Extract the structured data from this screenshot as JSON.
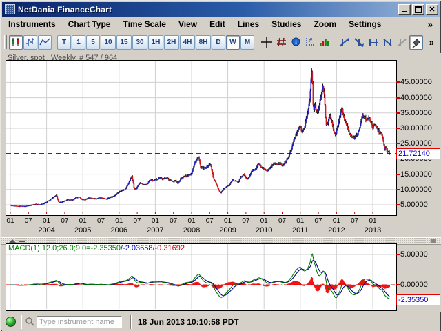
{
  "window": {
    "title": "NetDania FinanceChart"
  },
  "menu": {
    "items": [
      "Instruments",
      "Chart Type",
      "Time Scale",
      "View",
      "Edit",
      "Lines",
      "Studies",
      "Zoom",
      "Settings"
    ],
    "overflow": "»"
  },
  "toolbar": {
    "time_buttons": [
      {
        "label": "T",
        "pressed": false
      },
      {
        "label": "1",
        "pressed": false
      },
      {
        "label": "5",
        "pressed": false
      },
      {
        "label": "10",
        "pressed": false
      },
      {
        "label": "15",
        "pressed": false
      },
      {
        "label": "30",
        "pressed": false
      },
      {
        "label": "1H",
        "pressed": false
      },
      {
        "label": "2H",
        "pressed": false
      },
      {
        "label": "4H",
        "pressed": false
      },
      {
        "label": "8H",
        "pressed": false
      },
      {
        "label": "D",
        "pressed": false
      },
      {
        "label": "W",
        "pressed": true
      },
      {
        "label": "M",
        "pressed": false
      }
    ],
    "overflow": "»"
  },
  "chart_data": [
    {
      "type": "candlestick",
      "title": "Silver, spot , Weekly, # 547 / 964",
      "instrument": "Silver, spot",
      "timeframe": "Weekly",
      "bar_counter": "# 547 / 964",
      "last_price": 21.7214,
      "last_price_label": "21.72140",
      "y_ticks": [
        {
          "value": 45,
          "label": "45.00000"
        },
        {
          "value": 40,
          "label": "40.00000"
        },
        {
          "value": 35,
          "label": "35.00000"
        },
        {
          "value": 30,
          "label": "30.00000"
        },
        {
          "value": 25,
          "label": "25.00000"
        },
        {
          "value": 20,
          "label": "20.00000"
        },
        {
          "value": 15,
          "label": "15.00000"
        },
        {
          "value": 10,
          "label": "10.00000"
        },
        {
          "value": 5,
          "label": "5.00000"
        }
      ],
      "x_axis": {
        "month_labels": [
          "01",
          "07",
          "01",
          "07",
          "01",
          "07",
          "01",
          "07",
          "01",
          "07",
          "01",
          "07",
          "01",
          "07",
          "01",
          "07",
          "01",
          "07",
          "01",
          "07",
          "01"
        ],
        "month_t_start": 2003.0,
        "month_t_step": 0.5,
        "year_labels": [
          "2004",
          "2005",
          "2006",
          "2007",
          "2008",
          "2009",
          "2010",
          "2011",
          "2012",
          "2013"
        ]
      },
      "x_range": [
        2003.0,
        2013.55
      ],
      "bars_total": 547,
      "anchors": [
        [
          2003.0,
          4.85
        ],
        [
          2003.1,
          4.62
        ],
        [
          2003.2,
          4.52
        ],
        [
          2003.3,
          4.6
        ],
        [
          2003.4,
          4.55
        ],
        [
          2003.5,
          4.75
        ],
        [
          2003.6,
          5.05
        ],
        [
          2003.7,
          5.2
        ],
        [
          2003.8,
          5.05
        ],
        [
          2003.9,
          5.35
        ],
        [
          2004.0,
          6.0
        ],
        [
          2004.1,
          6.7
        ],
        [
          2004.2,
          7.6
        ],
        [
          2004.27,
          8.2
        ],
        [
          2004.33,
          5.8
        ],
        [
          2004.42,
          5.95
        ],
        [
          2004.5,
          6.3
        ],
        [
          2004.6,
          6.7
        ],
        [
          2004.7,
          6.45
        ],
        [
          2004.8,
          7.3
        ],
        [
          2004.9,
          7.6
        ],
        [
          2004.96,
          6.85
        ],
        [
          2005.05,
          6.65
        ],
        [
          2005.15,
          7.3
        ],
        [
          2005.25,
          7.15
        ],
        [
          2005.35,
          7.0
        ],
        [
          2005.45,
          7.3
        ],
        [
          2005.55,
          7.1
        ],
        [
          2005.65,
          6.95
        ],
        [
          2005.75,
          7.45
        ],
        [
          2005.85,
          7.85
        ],
        [
          2005.95,
          8.8
        ],
        [
          2006.05,
          9.6
        ],
        [
          2006.15,
          10.0
        ],
        [
          2006.25,
          11.7
        ],
        [
          2006.35,
          14.6
        ],
        [
          2006.42,
          10.0
        ],
        [
          2006.5,
          10.8
        ],
        [
          2006.58,
          12.3
        ],
        [
          2006.65,
          11.6
        ],
        [
          2006.75,
          11.5
        ],
        [
          2006.85,
          13.1
        ],
        [
          2006.95,
          12.9
        ],
        [
          2007.05,
          13.4
        ],
        [
          2007.13,
          14.1
        ],
        [
          2007.2,
          13.3
        ],
        [
          2007.3,
          13.9
        ],
        [
          2007.4,
          13.1
        ],
        [
          2007.48,
          12.6
        ],
        [
          2007.55,
          12.95
        ],
        [
          2007.62,
          12.0
        ],
        [
          2007.7,
          13.5
        ],
        [
          2007.8,
          14.3
        ],
        [
          2007.9,
          14.6
        ],
        [
          2008.0,
          15.3
        ],
        [
          2008.1,
          19.2
        ],
        [
          2008.19,
          20.6
        ],
        [
          2008.25,
          17.2
        ],
        [
          2008.33,
          16.9
        ],
        [
          2008.42,
          17.4
        ],
        [
          2008.52,
          18.3
        ],
        [
          2008.6,
          13.8
        ],
        [
          2008.68,
          11.9
        ],
        [
          2008.76,
          9.4
        ],
        [
          2008.81,
          9.0
        ],
        [
          2008.88,
          10.2
        ],
        [
          2008.96,
          11.0
        ],
        [
          2009.05,
          11.5
        ],
        [
          2009.13,
          13.1
        ],
        [
          2009.2,
          13.0
        ],
        [
          2009.28,
          12.3
        ],
        [
          2009.36,
          14.0
        ],
        [
          2009.44,
          14.9
        ],
        [
          2009.52,
          13.5
        ],
        [
          2009.6,
          14.4
        ],
        [
          2009.68,
          16.4
        ],
        [
          2009.76,
          16.5
        ],
        [
          2009.84,
          18.3
        ],
        [
          2009.93,
          17.2
        ],
        [
          2010.02,
          16.4
        ],
        [
          2010.1,
          16.0
        ],
        [
          2010.18,
          17.3
        ],
        [
          2010.27,
          18.5
        ],
        [
          2010.35,
          18.3
        ],
        [
          2010.43,
          18.6
        ],
        [
          2010.51,
          17.9
        ],
        [
          2010.6,
          19.0
        ],
        [
          2010.68,
          20.8
        ],
        [
          2010.76,
          23.5
        ],
        [
          2010.84,
          26.8
        ],
        [
          2010.92,
          29.3
        ],
        [
          2010.98,
          30.8
        ],
        [
          2011.06,
          28.5
        ],
        [
          2011.14,
          31.8
        ],
        [
          2011.21,
          35.5
        ],
        [
          2011.27,
          41.0
        ],
        [
          2011.3,
          46.5
        ],
        [
          2011.32,
          49.3
        ],
        [
          2011.36,
          35.0
        ],
        [
          2011.4,
          38.2
        ],
        [
          2011.44,
          35.0
        ],
        [
          2011.5,
          36.0
        ],
        [
          2011.56,
          40.0
        ],
        [
          2011.62,
          43.6
        ],
        [
          2011.66,
          41.5
        ],
        [
          2011.71,
          30.8
        ],
        [
          2011.76,
          31.5
        ],
        [
          2011.8,
          34.5
        ],
        [
          2011.86,
          32.5
        ],
        [
          2011.92,
          29.0
        ],
        [
          2011.97,
          27.9
        ],
        [
          2012.04,
          31.0
        ],
        [
          2012.1,
          34.0
        ],
        [
          2012.14,
          37.0
        ],
        [
          2012.2,
          33.5
        ],
        [
          2012.27,
          31.5
        ],
        [
          2012.34,
          28.5
        ],
        [
          2012.42,
          27.2
        ],
        [
          2012.5,
          27.0
        ],
        [
          2012.58,
          28.0
        ],
        [
          2012.65,
          31.0
        ],
        [
          2012.71,
          34.5
        ],
        [
          2012.77,
          33.8
        ],
        [
          2012.83,
          32.3
        ],
        [
          2012.89,
          33.9
        ],
        [
          2012.95,
          31.5
        ],
        [
          2013.0,
          30.2
        ],
        [
          2013.06,
          31.5
        ],
        [
          2013.12,
          29.8
        ],
        [
          2013.18,
          28.5
        ],
        [
          2013.24,
          28.3
        ],
        [
          2013.28,
          26.5
        ],
        [
          2013.32,
          23.2
        ],
        [
          2013.36,
          23.8
        ],
        [
          2013.4,
          22.4
        ],
        [
          2013.44,
          22.2
        ],
        [
          2013.46,
          21.72
        ]
      ]
    },
    {
      "type": "macd",
      "label": {
        "green": "MACD(1) 12.0;26.0;9.0=-2.35350",
        "blue": "/-2.03658",
        "red": "/-0.31692"
      },
      "params": {
        "fast": 12,
        "slow": 26,
        "signal": 9
      },
      "current": {
        "macd": -2.3535,
        "signal": -2.03658,
        "histogram": -0.31692
      },
      "y_ticks": [
        {
          "value": 5,
          "label": "5.00000"
        },
        {
          "value": 0,
          "label": "0.00000"
        }
      ],
      "value_box_label": "-2.35350"
    }
  ],
  "statusbar": {
    "connection_status": "connected",
    "search_placeholder": "Type instrument name",
    "datetime": "18 Jun 2013 10:10:58 PDT"
  },
  "colors": {
    "candle_up": "#2424c8",
    "candle_down": "#d81818",
    "wick": "#000000",
    "grid": "#d0d0d0",
    "dashed_price_line": "#0000dd",
    "axis_tick": "#cc0000",
    "macd_line": "#007a00",
    "signal_line": "#00008b",
    "histogram": "#f01414",
    "titlebar_left": "#0a246a",
    "titlebar_right": "#9db9dd"
  }
}
